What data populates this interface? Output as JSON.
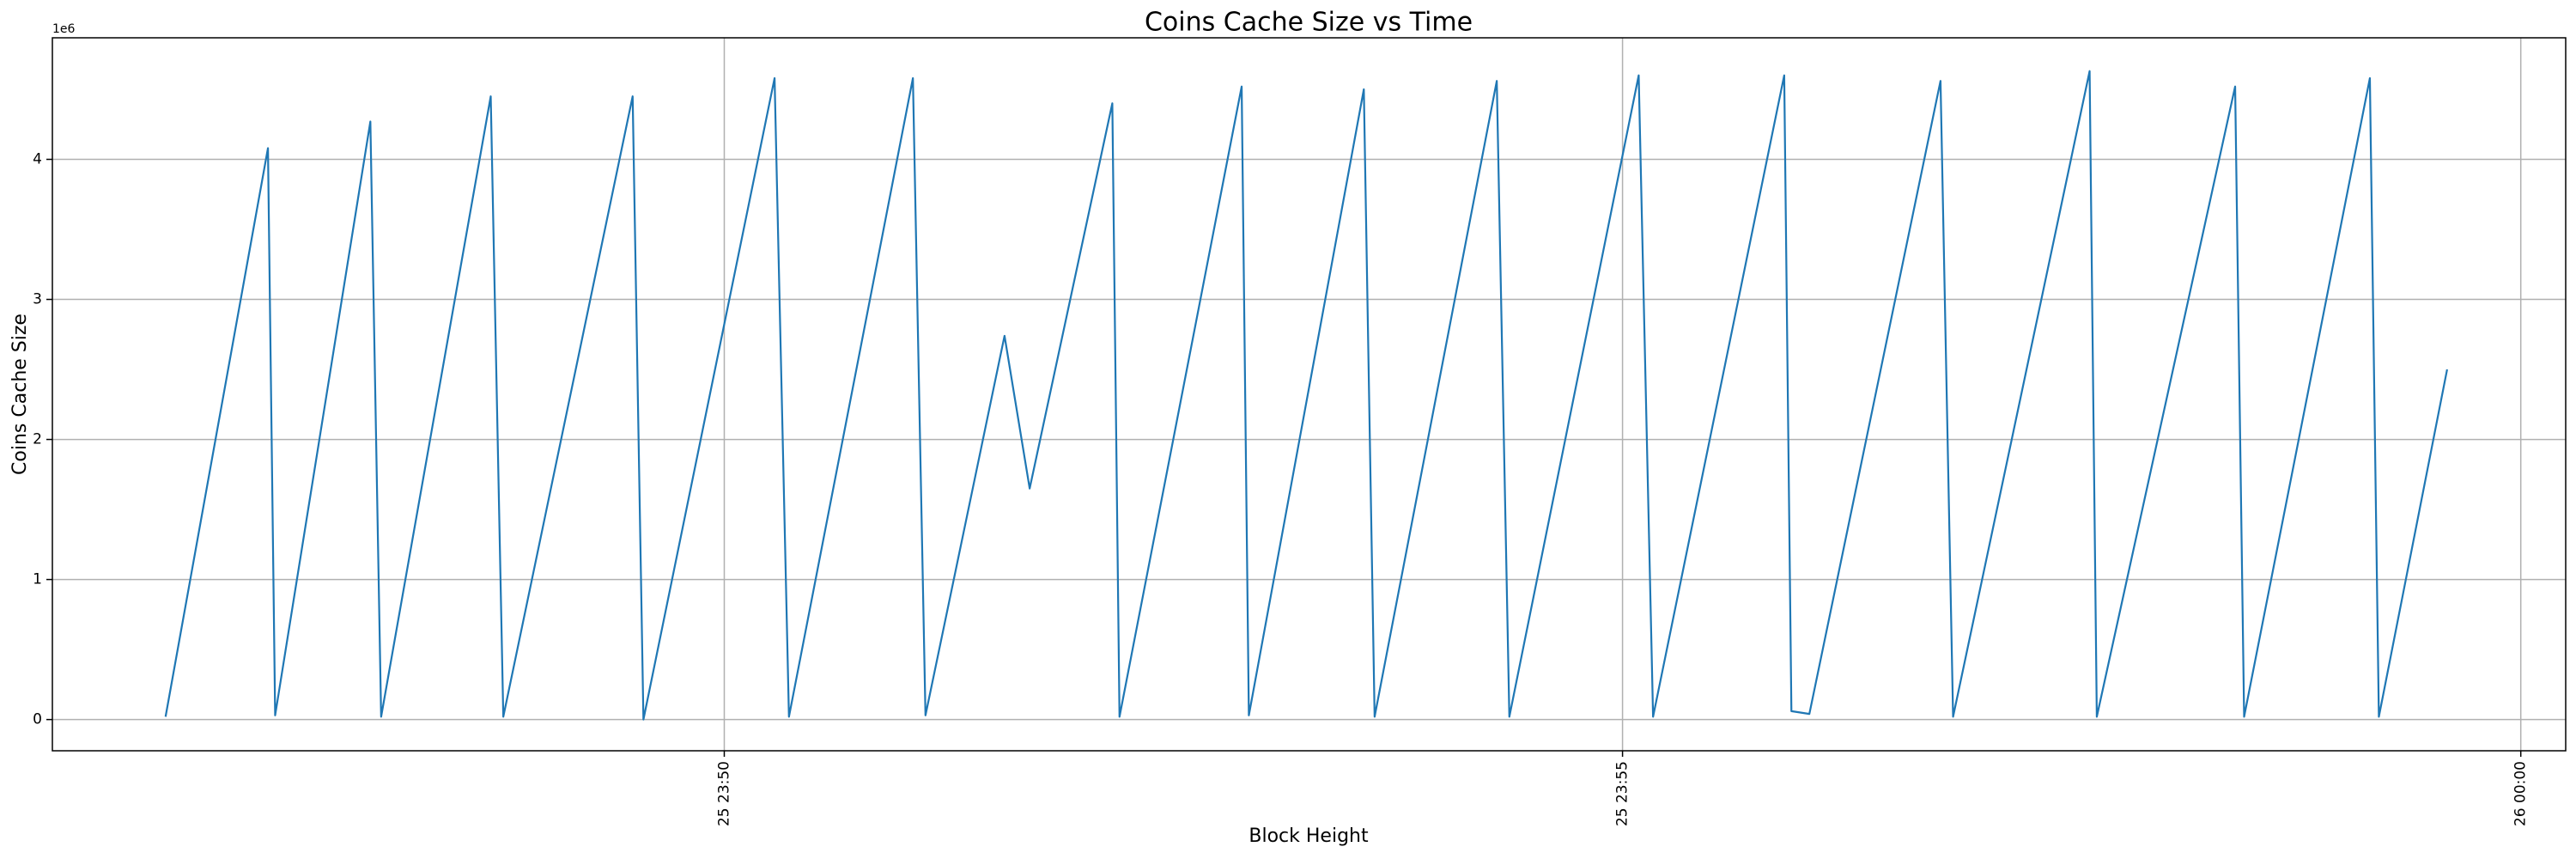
{
  "chart_data": {
    "type": "line",
    "title": "Coins Cache Size vs Time",
    "xlabel": "Block Height",
    "ylabel": "Coins Cache Size",
    "y_offset_label": "1e6",
    "x": [
      1426.89,
      1427.46,
      1427.5,
      1428.03,
      1428.09,
      1428.7,
      1428.77,
      1429.49,
      1429.55,
      1430.28,
      1430.36,
      1431.05,
      1431.12,
      1431.56,
      1431.7,
      1432.16,
      1432.2,
      1432.88,
      1432.92,
      1433.56,
      1433.62,
      1434.3,
      1434.37,
      1435.09,
      1435.17,
      1435.9,
      1435.94,
      1436.04,
      1436.77,
      1436.84,
      1437.6,
      1437.64,
      1438.41,
      1438.46,
      1439.16,
      1439.21,
      1439.59
    ],
    "series": [
      {
        "name": "Coins Cache Size",
        "color": "#1f77b4",
        "values": [
          0.02,
          4.08,
          0.03,
          4.27,
          0.02,
          4.45,
          0.02,
          4.45,
          0.0,
          4.58,
          0.02,
          4.58,
          0.03,
          2.74,
          1.65,
          4.4,
          0.02,
          4.52,
          0.03,
          4.5,
          0.02,
          4.56,
          0.02,
          4.6,
          0.02,
          4.6,
          0.06,
          0.04,
          4.56,
          0.02,
          4.63,
          0.02,
          4.52,
          0.02,
          4.58,
          0.02,
          2.5
        ]
      }
    ],
    "xlim": [
      1426.26,
      1440.25
    ],
    "xticks": [
      {
        "value": 1430,
        "label": "25 23:50"
      },
      {
        "value": 1435,
        "label": "25 23:55"
      },
      {
        "value": 1440,
        "label": "26 00:00"
      }
    ],
    "ylim": [
      -0.223,
      4.868
    ],
    "yticks": [
      0,
      1,
      2,
      3,
      4
    ],
    "grid": true
  }
}
